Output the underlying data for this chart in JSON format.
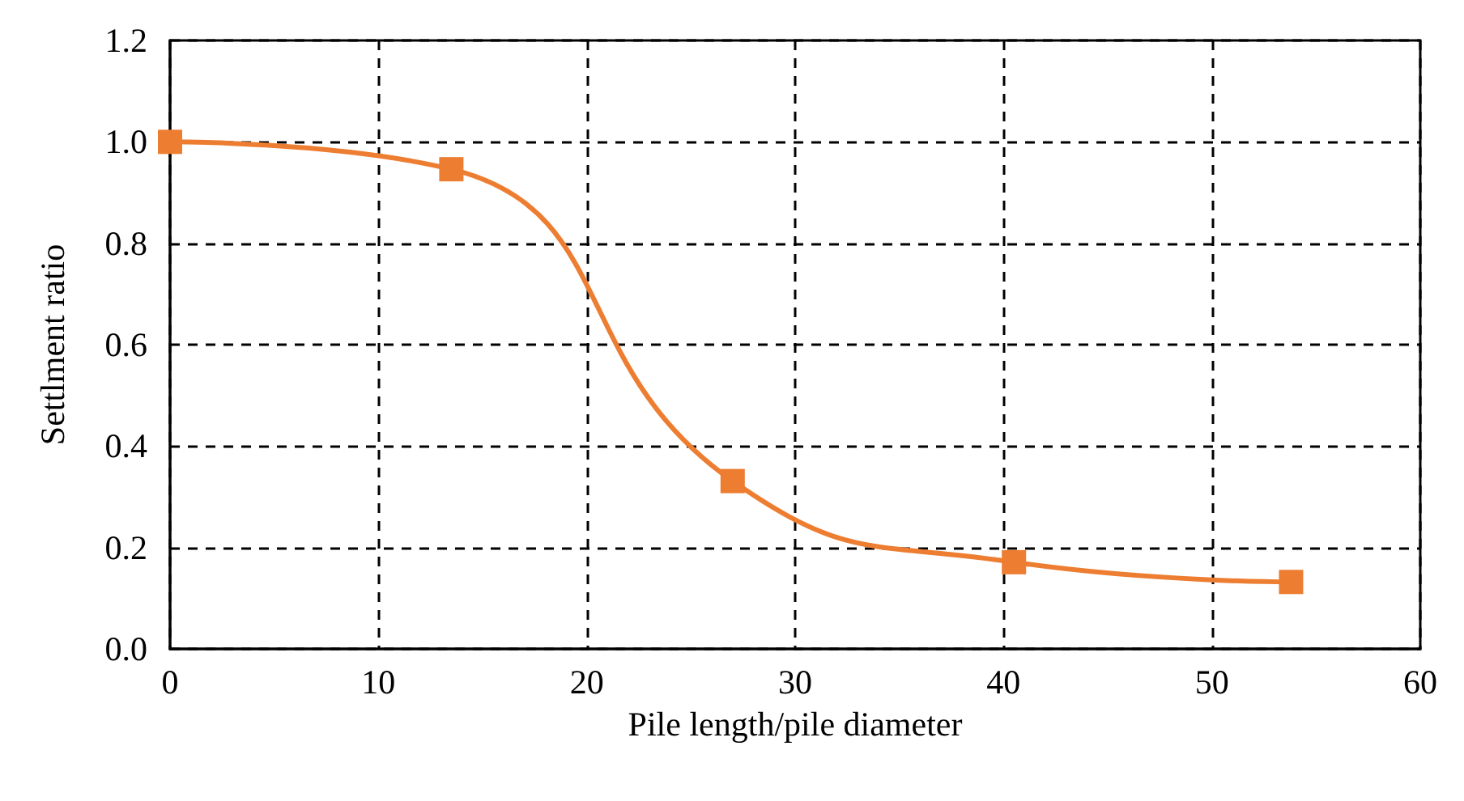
{
  "chart_data": {
    "type": "line",
    "xlabel": "Pile length/pile diameter",
    "ylabel": "Settlment ratio",
    "x": [
      0,
      13.5,
      27,
      40.5,
      53.8
    ],
    "series": [
      {
        "color": "#ed7d31",
        "values": [
          1.0,
          0.946,
          0.331,
          0.171,
          0.132
        ]
      }
    ],
    "xlim": [
      0,
      60
    ],
    "xticks": [
      0,
      10,
      20,
      30,
      40,
      50,
      60
    ],
    "ylim": [
      0,
      1.2
    ],
    "yticks": [
      {
        "value": 0,
        "label": "0.0"
      },
      0.2,
      0.4,
      0.6,
      0.8,
      {
        "value": 1,
        "label": "1.0"
      },
      1.2
    ],
    "grid": true,
    "marker": "square",
    "line_style": "solid"
  }
}
